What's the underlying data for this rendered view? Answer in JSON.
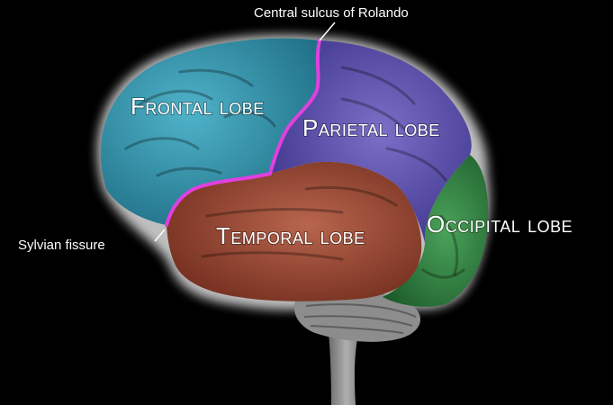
{
  "diagram": {
    "subject": "Lateral view of the human brain",
    "lobes": {
      "frontal": {
        "label": "Frontal lobe",
        "color": "#2f8fa8"
      },
      "parietal": {
        "label": "Parietal lobe",
        "color": "#4a3f9a"
      },
      "temporal": {
        "label": "Temporal lobe",
        "color": "#8e3b28"
      },
      "occipital": {
        "label": "Occipital lobe",
        "color": "#2e7a3e"
      }
    },
    "callouts": {
      "central_sulcus": {
        "label": "Central sulcus of Rolando",
        "color": "#e040e0"
      },
      "sylvian_fissure": {
        "label": "Sylvian fissure",
        "color": "#e040e0"
      }
    },
    "colors": {
      "background": "#000000",
      "glow": "#ffffff",
      "brainstem": "#8a8a8a",
      "cerebellum": "#9a9a9a"
    }
  }
}
